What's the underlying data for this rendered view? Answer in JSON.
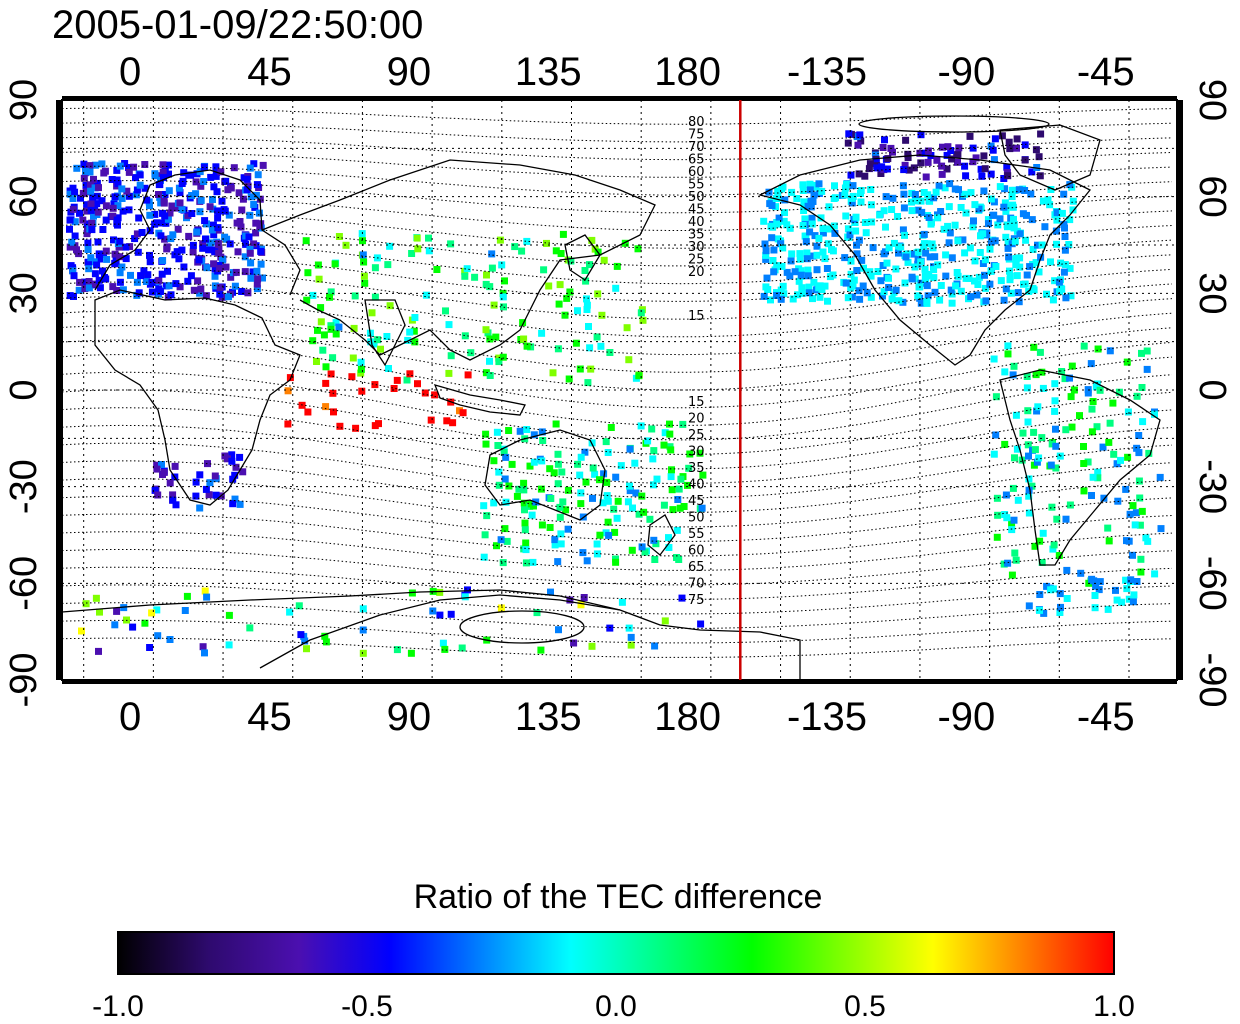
{
  "title": "2005-01-09/22:50:00",
  "map": {
    "lon_ticks": [
      "0",
      "45",
      "90",
      "135",
      "180",
      "-135",
      "-90",
      "-45"
    ],
    "lat_ticks": [
      "90",
      "60",
      "30",
      "0",
      "-30",
      "-60",
      "-90"
    ],
    "terminator_lon": -163,
    "north_contour_labels": [
      "80",
      "75",
      "70",
      "65",
      "60",
      "55",
      "50",
      "45",
      "40",
      "35",
      "30",
      "25",
      "20",
      "15"
    ],
    "south_contour_labels": [
      "15",
      "20",
      "25",
      "30",
      "35",
      "40",
      "45",
      "50",
      "55",
      "60",
      "65",
      "70",
      "75"
    ]
  },
  "colorbar": {
    "title": "Ratio of the TEC difference",
    "ticks": [
      "-1.0",
      "-0.5",
      "0.0",
      "0.5",
      "1.0"
    ],
    "range": [
      -1.0,
      1.0
    ],
    "colors": [
      "#000000",
      "#2e0a6e",
      "#4b0fb0",
      "#0000ff",
      "#0080ff",
      "#00ffff",
      "#00ff80",
      "#00ff00",
      "#80ff00",
      "#ffff00",
      "#ff8000",
      "#ff0000"
    ]
  },
  "colors": {
    "terminator": "#cc0000",
    "coast": "#000000",
    "grid": "#000000"
  }
}
